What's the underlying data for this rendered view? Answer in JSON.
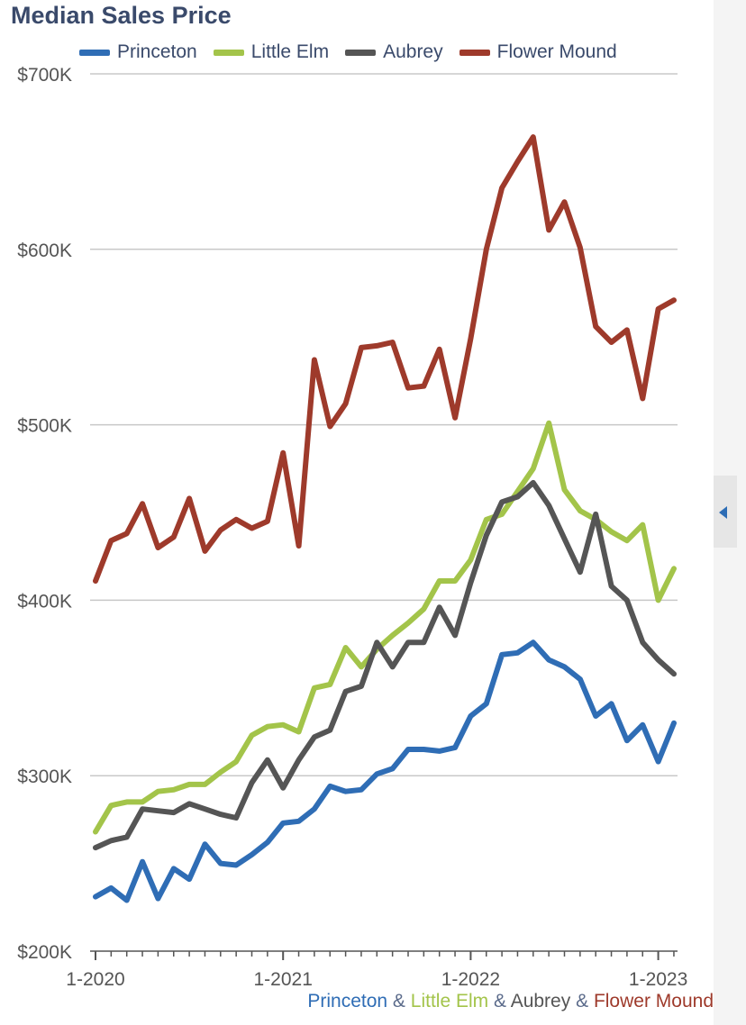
{
  "chart_data": {
    "type": "line",
    "title": "Median Sales Price",
    "xlabel": "",
    "ylabel": "",
    "ylim": [
      200000,
      700000
    ],
    "y_ticks": [
      200000,
      300000,
      400000,
      500000,
      600000,
      700000
    ],
    "y_tick_labels": [
      "$200K",
      "$300K",
      "$400K",
      "$500K",
      "$600K",
      "$700K"
    ],
    "x_tick_labels": [
      "1-2020",
      "1-2021",
      "1-2022",
      "1-2023"
    ],
    "x_range": [
      "1-2020",
      "2-2023"
    ],
    "grid": true,
    "legend_position": "top",
    "series": [
      {
        "name": "Princeton",
        "color": "#2f6db5",
        "values": [
          231000,
          236000,
          229000,
          251000,
          230000,
          247000,
          241000,
          261000,
          250000,
          249000,
          255000,
          262000,
          273000,
          274000,
          281000,
          294000,
          291000,
          292000,
          301000,
          304000,
          315000,
          315000,
          314000,
          316000,
          334000,
          341000,
          369000,
          370000,
          376000,
          366000,
          362000,
          355000,
          334000,
          341000,
          320000,
          329000,
          308000,
          330000
        ]
      },
      {
        "name": "Little Elm",
        "color": "#a3c44a",
        "values": [
          268000,
          283000,
          285000,
          285000,
          291000,
          292000,
          295000,
          295000,
          302000,
          308000,
          323000,
          328000,
          329000,
          325000,
          350000,
          352000,
          373000,
          362000,
          372000,
          380000,
          387000,
          395000,
          411000,
          411000,
          423000,
          446000,
          449000,
          462000,
          475000,
          501000,
          463000,
          451000,
          446000,
          439000,
          434000,
          443000,
          400000,
          418000
        ]
      },
      {
        "name": "Aubrey",
        "color": "#555555",
        "values": [
          259000,
          263000,
          265000,
          281000,
          280000,
          279000,
          284000,
          281000,
          278000,
          276000,
          296000,
          309000,
          293000,
          309000,
          322000,
          326000,
          348000,
          351000,
          376000,
          362000,
          376000,
          376000,
          396000,
          380000,
          410000,
          437000,
          456000,
          459000,
          467000,
          454000,
          435000,
          416000,
          449000,
          408000,
          400000,
          376000,
          366000,
          358000
        ]
      },
      {
        "name": "Flower Mound",
        "color": "#9e3a2b",
        "values": [
          411000,
          434000,
          438000,
          455000,
          430000,
          436000,
          458000,
          428000,
          440000,
          446000,
          441000,
          445000,
          484000,
          431000,
          537000,
          499000,
          512000,
          544000,
          545000,
          547000,
          521000,
          522000,
          543000,
          504000,
          549000,
          600000,
          635000,
          650000,
          664000,
          611000,
          627000,
          601000,
          556000,
          547000,
          554000,
          515000,
          566000,
          571000
        ]
      }
    ]
  },
  "footer": {
    "caption_parts": [
      "Princeton",
      "&",
      "Little Elm",
      "&",
      "Aubrey",
      "&",
      "Flower Mound"
    ]
  },
  "colors": {
    "title": "#3a4a6b",
    "grid": "#c8c8c8",
    "axis_text": "#555555"
  }
}
